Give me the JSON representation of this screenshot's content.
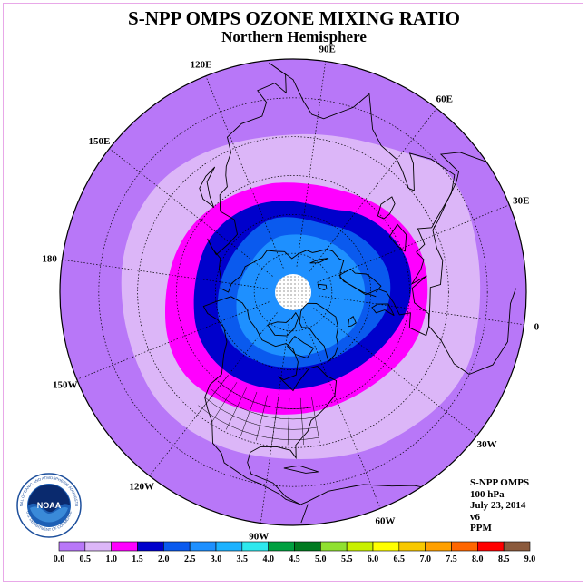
{
  "title": "S-NPP OMPS OZONE MIXING RATIO",
  "subtitle": "Northern Hemisphere",
  "info": {
    "instrument": "S-NPP OMPS",
    "level": "100 hPa",
    "date": "July 23, 2014",
    "version": "v6",
    "units": "PPM"
  },
  "meridian_labels": [
    {
      "text": "0",
      "lon": 0
    },
    {
      "text": "30E",
      "lon": 30
    },
    {
      "text": "60E",
      "lon": 60
    },
    {
      "text": "90E",
      "lon": 90
    },
    {
      "text": "120E",
      "lon": 120
    },
    {
      "text": "150E",
      "lon": 150
    },
    {
      "text": "180",
      "lon": 180
    },
    {
      "text": "150W",
      "lon": -150
    },
    {
      "text": "120W",
      "lon": -120
    },
    {
      "text": "90W",
      "lon": -90
    },
    {
      "text": "60W",
      "lon": -60
    },
    {
      "text": "30W",
      "lon": -30
    }
  ],
  "colorbar": {
    "ticks": [
      "0.0",
      "0.5",
      "1.0",
      "1.5",
      "2.0",
      "2.5",
      "3.0",
      "3.5",
      "4.0",
      "4.5",
      "5.0",
      "5.5",
      "6.0",
      "6.5",
      "7.0",
      "7.5",
      "8.0",
      "8.5",
      "9.0"
    ],
    "colors": [
      "#b877f8",
      "#dcb6f8",
      "#ff00ff",
      "#0000cc",
      "#0a5aee",
      "#1e90ff",
      "#1cb2ff",
      "#2ee8ee",
      "#00a040",
      "#007a20",
      "#90e030",
      "#c8f000",
      "#ffff00",
      "#f8c800",
      "#ffa000",
      "#ff6600",
      "#ff0000",
      "#8b5a3c"
    ]
  },
  "logo": {
    "text": "NOAA",
    "ring_text": "NATIONAL OCEANIC AND ATMOSPHERIC ADMINISTRATION",
    "ring_text_bottom": "U.S. DEPARTMENT OF COMMERCE"
  },
  "field": {
    "colors": {
      "band_0_0.5": "#b877f8",
      "band_0.5_1.0": "#dcb6f8",
      "band_1.0_1.5": "#ff00ff",
      "band_1.5_2.0": "#0000cc",
      "band_2.0_2.5": "#0a5aee",
      "band_2.5_3.0": "#1e90ff",
      "pole_missing": "#ffffff"
    }
  }
}
